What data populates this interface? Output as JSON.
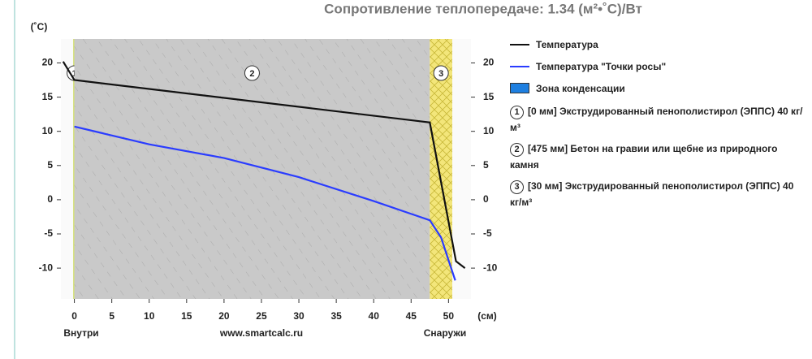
{
  "chart_data": {
    "type": "line",
    "title": "Сопротивление теплопередаче: 1.34 (м²•˚С)/Вт",
    "y_label": "(˚С)",
    "x_label": "(см)",
    "x_left_label": "Внутри",
    "x_center_label": "www.smartcalc.ru",
    "x_right_label": "Снаружи",
    "xlim": [
      -1.8,
      53
    ],
    "ylim": [
      -14.5,
      23.5
    ],
    "xticks": [
      0,
      5,
      10,
      15,
      20,
      25,
      30,
      35,
      40,
      45,
      50
    ],
    "yticks": [
      20,
      15,
      10,
      5,
      0,
      -5,
      -10
    ],
    "series": [
      {
        "name": "Температура",
        "color": "#111111",
        "x": [
          -1.5,
          0,
          47.5,
          51,
          52.2
        ],
        "values": [
          20.2,
          17.5,
          11.3,
          -9,
          -10
        ]
      },
      {
        "name": "Температура \"Точки росы\"",
        "color": "#2a3cff",
        "x": [
          0,
          10,
          20,
          30,
          40,
          47.5,
          49,
          50.2,
          50.9
        ],
        "values": [
          10.7,
          8.1,
          6.1,
          3.3,
          -0.2,
          -3,
          -5.5,
          -9.5,
          -11.8
        ]
      }
    ],
    "condensation_zone": {
      "name": "Зона конденсации",
      "color": "#1e7fe0"
    },
    "layers": [
      {
        "number": "1",
        "description": "[0 мм] Экструдированный пенополистирол (ЭППС) 40 кг/м³",
        "start": 0,
        "end": 0,
        "color": "#d4e07a"
      },
      {
        "number": "2",
        "description": "[475 мм] Бетон на гравии или щебне из природного камня",
        "start": 0,
        "end": 47.5,
        "color": "#c9c9c9"
      },
      {
        "number": "3",
        "description": "[30 мм] Экструдированный пенополистирол (ЭППС) 40 кг/м³",
        "start": 47.5,
        "end": 50.5,
        "color": "#f3e67a"
      }
    ]
  }
}
